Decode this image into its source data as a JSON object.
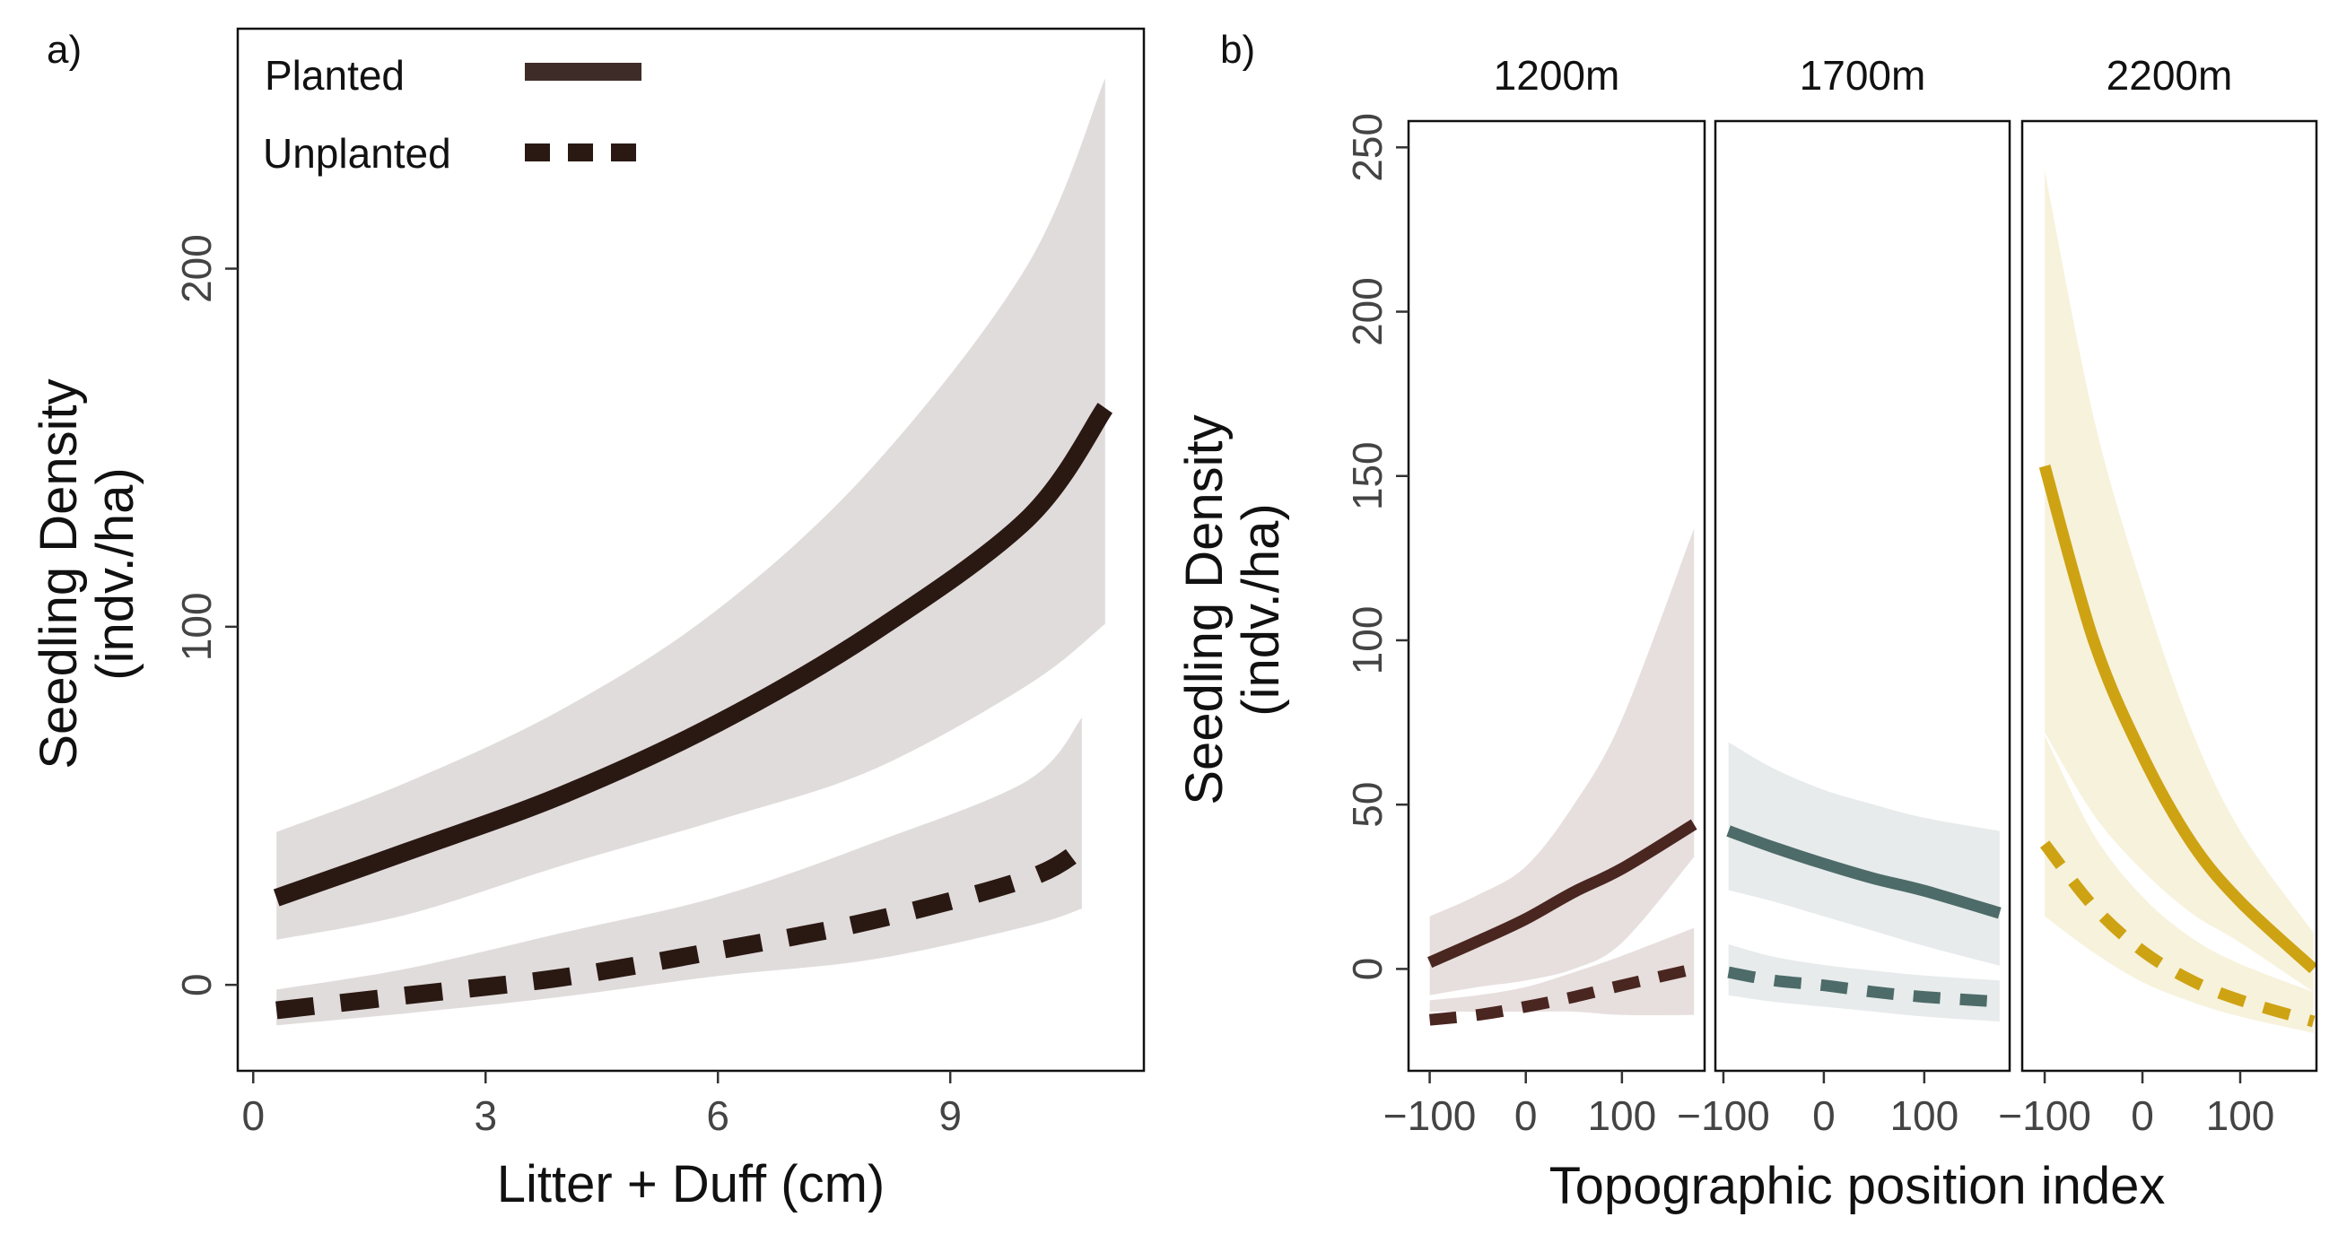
{
  "panel_labels": {
    "a": "a)",
    "b": "b)"
  },
  "legend": {
    "planted": "Planted",
    "unplanted": "Unplanted"
  },
  "colors": {
    "band_a": "#e1dcdc",
    "line_a": "#2a1913",
    "legend_planted": "#3e2c28",
    "legend_unplanted": "#2a1913",
    "line_1200": "#4a2621",
    "band_1200": "#e3d9d8",
    "line_1700": "#4d6b69",
    "band_1700": "#e3e8e7",
    "line_2200": "#cea313",
    "band_2200": "#f6f0d6"
  },
  "chart_data": [
    {
      "id": "a",
      "type": "line",
      "xlabel": "Litter + Duff (cm)",
      "ylabel": [
        "Seedling Density",
        "(indv./ha)"
      ],
      "xlim": [
        -0.2,
        11.5
      ],
      "ylim": [
        -24,
        267
      ],
      "xticks": [
        0,
        3,
        6,
        9
      ],
      "xtick_labels": [
        "0",
        "3",
        "6",
        "9"
      ],
      "yticks": [
        0,
        100,
        200
      ],
      "ytick_labels": [
        "0",
        "100",
        "200"
      ],
      "grid": false,
      "legend_position": "top-left",
      "series": [
        {
          "name": "Planted",
          "style": "solid",
          "x": [
            0.3,
            2,
            4,
            6,
            8,
            10,
            11
          ],
          "y": [
            24.3,
            37.3,
            53.1,
            73.1,
            98.3,
            130.2,
            161.1
          ],
          "lower": [
            12.6,
            19.7,
            33.4,
            46.0,
            60.1,
            83.7,
            100.8
          ],
          "upper": [
            42.7,
            56.7,
            77.1,
            104.9,
            144.7,
            201.1,
            253.2
          ]
        },
        {
          "name": "Unplanted",
          "style": "dashed",
          "x": [
            0.3,
            2,
            4,
            6,
            8,
            10,
            10.7
          ],
          "y": [
            -7.1,
            -2.9,
            2.1,
            9.6,
            18.0,
            29.7,
            38.0
          ],
          "lower": [
            -11.3,
            -7.9,
            -3.3,
            2.5,
            7.1,
            16.4,
            21.3
          ],
          "upper": [
            -1.3,
            4.6,
            14.6,
            24.6,
            39.6,
            57.1,
            74.6
          ]
        }
      ]
    },
    {
      "id": "b",
      "type": "line",
      "xlabel": "Topographic position index",
      "ylabel": [
        "Seedling Density",
        "(indv./ha)"
      ],
      "ylim": [
        -31,
        258
      ],
      "yticks": [
        0,
        50,
        100,
        150,
        200,
        250
      ],
      "ytick_labels": [
        "0",
        "50",
        "100",
        "150",
        "200",
        "250"
      ],
      "grid": false,
      "facets": [
        {
          "title": "1200m",
          "xlim": [
            -122,
            186
          ],
          "xticks": [
            -100,
            0,
            100
          ],
          "xtick_labels": [
            "−100",
            "0",
            "100"
          ],
          "series": [
            {
              "name": "Planted",
              "style": "solid",
              "x": [
                -100,
                -50,
                0,
                50,
                100,
                175
              ],
              "y": [
                2,
                8.4,
                15.2,
                23.4,
                30.5,
                44
              ],
              "lower": [
                -8,
                -5.5,
                -3.5,
                0,
                8,
                34
              ],
              "upper": [
                16,
                22.5,
                31.2,
                50,
                76,
                134
              ]
            },
            {
              "name": "Unplanted",
              "style": "dashed",
              "x": [
                -100,
                -50,
                0,
                50,
                100,
                175
              ],
              "y": [
                -15.5,
                -14,
                -11.5,
                -8.5,
                -5,
                0
              ],
              "lower": [
                -13,
                -13,
                -13,
                -13,
                -14,
                -14
              ],
              "upper": [
                -9.5,
                -8,
                -5.5,
                -1,
                4,
                12.5
              ]
            }
          ]
        },
        {
          "title": "1700m",
          "xlim": [
            -108,
            185
          ],
          "xticks": [
            -100,
            0,
            100
          ],
          "xtick_labels": [
            "−100",
            "0",
            "100"
          ],
          "series": [
            {
              "name": "Planted",
              "style": "solid",
              "x": [
                -95,
                -50,
                0,
                50,
                100,
                175
              ],
              "y": [
                42,
                37,
                32,
                27.5,
                23.8,
                17
              ],
              "lower": [
                24,
                20.5,
                16,
                11.5,
                7,
                1
              ],
              "upper": [
                69,
                61,
                54.5,
                50,
                46,
                42
              ]
            },
            {
              "name": "Unplanted",
              "style": "dashed",
              "x": [
                -95,
                -50,
                0,
                50,
                100,
                175
              ],
              "y": [
                -1,
                -3.5,
                -5,
                -7,
                -8.5,
                -10
              ],
              "lower": [
                -8,
                -10,
                -11.5,
                -13,
                -14.5,
                -16
              ],
              "upper": [
                7.5,
                3.7,
                1.2,
                -0.5,
                -2,
                -3.5
              ]
            }
          ]
        },
        {
          "title": "2200m",
          "xlim": [
            -123,
            178
          ],
          "xticks": [
            -100,
            0,
            100
          ],
          "xtick_labels": [
            "−100",
            "0",
            "100"
          ],
          "series": [
            {
              "name": "Planted",
              "style": "solid",
              "x": [
                -100,
                -50,
                0,
                50,
                100,
                175
              ],
              "y": [
                153,
                100,
                65,
                38.5,
                20.5,
                0
              ],
              "lower": [
                72,
                47,
                30,
                17,
                8,
                -7
              ],
              "upper": [
                243,
                168,
                116,
                73,
                42,
                11
              ]
            },
            {
              "name": "Unplanted",
              "style": "dashed",
              "x": [
                -100,
                -50,
                0,
                50,
                100,
                175
              ],
              "y": [
                38,
                19,
                5.5,
                -3.5,
                -9.5,
                -16
              ],
              "lower": [
                16,
                5,
                -4,
                -10,
                -14.5,
                -19.5
              ],
              "upper": [
                71,
                41,
                22,
                9.5,
                1.5,
                -7
              ]
            }
          ]
        }
      ]
    }
  ]
}
